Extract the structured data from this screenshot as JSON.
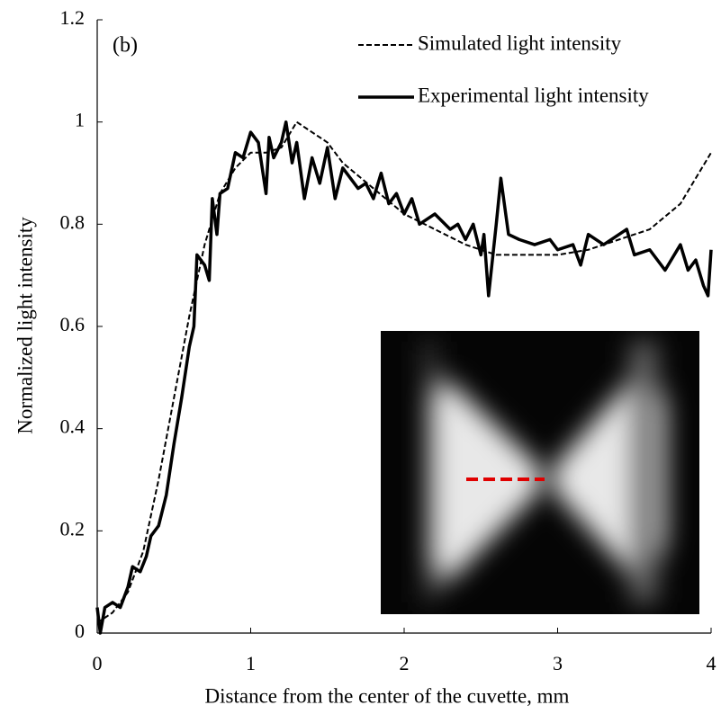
{
  "chart_data": {
    "type": "line",
    "xlabel": "Distance from the center of the cuvette, mm",
    "ylabel": "Normalized light intensity",
    "annotation": "(b)",
    "xlim": [
      0,
      4
    ],
    "xticks": [
      0,
      1,
      2,
      3,
      4
    ],
    "ylim": [
      0,
      1.2
    ],
    "yticks": [
      0,
      {
        "value": 0.2,
        "label": "0.2"
      },
      {
        "value": 0.4,
        "label": "0.4"
      },
      {
        "value": 0.6,
        "label": "0.6"
      },
      {
        "value": 0.8,
        "label": "0.8"
      },
      1,
      1.2
    ],
    "legend": "upper right",
    "series": [
      {
        "name": "Simulated light intensity",
        "color": "#000000",
        "dash": true,
        "x": [
          0,
          0.1,
          0.2,
          0.3,
          0.4,
          0.5,
          0.6,
          0.7,
          0.8,
          0.9,
          1.0,
          1.1,
          1.2,
          1.3,
          1.4,
          1.5,
          1.6,
          1.8,
          2.0,
          2.2,
          2.4,
          2.6,
          2.8,
          3.0,
          3.2,
          3.4,
          3.6,
          3.8,
          4.0
        ],
        "values": [
          0.02,
          0.04,
          0.08,
          0.16,
          0.3,
          0.46,
          0.62,
          0.76,
          0.86,
          0.91,
          0.94,
          0.94,
          0.95,
          1.0,
          0.98,
          0.96,
          0.92,
          0.87,
          0.82,
          0.79,
          0.76,
          0.74,
          0.74,
          0.74,
          0.75,
          0.77,
          0.79,
          0.84,
          0.94
        ]
      },
      {
        "name": "Experimental light intensity",
        "color": "#000000",
        "dash": false,
        "x": [
          0,
          0.02,
          0.05,
          0.1,
          0.15,
          0.2,
          0.23,
          0.28,
          0.32,
          0.35,
          0.4,
          0.45,
          0.5,
          0.55,
          0.6,
          0.63,
          0.65,
          0.7,
          0.73,
          0.75,
          0.78,
          0.8,
          0.85,
          0.9,
          0.95,
          1.0,
          1.05,
          1.1,
          1.12,
          1.15,
          1.2,
          1.23,
          1.27,
          1.3,
          1.35,
          1.4,
          1.45,
          1.5,
          1.55,
          1.6,
          1.65,
          1.7,
          1.75,
          1.8,
          1.85,
          1.9,
          1.95,
          2.0,
          2.05,
          2.1,
          2.2,
          2.3,
          2.35,
          2.4,
          2.45,
          2.5,
          2.52,
          2.55,
          2.6,
          2.63,
          2.68,
          2.75,
          2.85,
          2.95,
          3.0,
          3.1,
          3.15,
          3.2,
          3.3,
          3.4,
          3.45,
          3.5,
          3.6,
          3.7,
          3.8,
          3.85,
          3.9,
          3.95,
          3.98,
          4.0
        ],
        "values": [
          0.05,
          0.0,
          0.05,
          0.06,
          0.05,
          0.09,
          0.13,
          0.12,
          0.15,
          0.19,
          0.21,
          0.27,
          0.37,
          0.46,
          0.56,
          0.6,
          0.74,
          0.72,
          0.69,
          0.85,
          0.78,
          0.86,
          0.87,
          0.94,
          0.93,
          0.98,
          0.96,
          0.86,
          0.97,
          0.93,
          0.96,
          1.0,
          0.92,
          0.96,
          0.85,
          0.93,
          0.88,
          0.95,
          0.85,
          0.91,
          0.89,
          0.87,
          0.88,
          0.85,
          0.9,
          0.84,
          0.86,
          0.82,
          0.85,
          0.8,
          0.82,
          0.79,
          0.8,
          0.77,
          0.8,
          0.74,
          0.78,
          0.66,
          0.8,
          0.89,
          0.78,
          0.77,
          0.76,
          0.77,
          0.75,
          0.76,
          0.72,
          0.78,
          0.76,
          0.78,
          0.79,
          0.74,
          0.75,
          0.71,
          0.76,
          0.71,
          0.73,
          0.68,
          0.66,
          0.75
        ]
      }
    ]
  }
}
